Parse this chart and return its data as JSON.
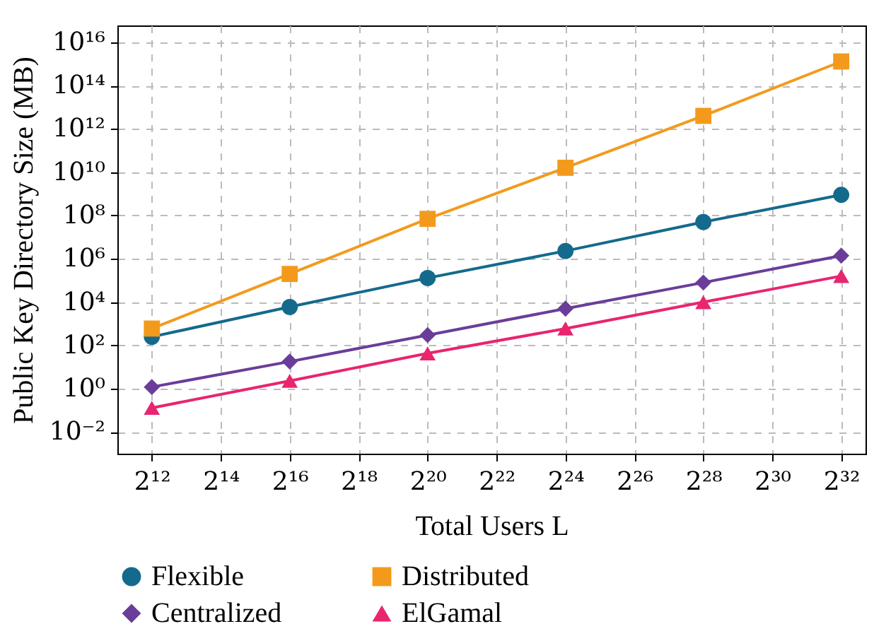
{
  "chart_data": {
    "type": "line",
    "xlabel": "Total Users L",
    "ylabel": "Public Key Directory Size (MB)",
    "log": "xy",
    "grid": true,
    "legend": "bottom",
    "x": [
      4096,
      65536,
      1048576,
      16777216,
      268435456,
      4294967296
    ],
    "xlim": [
      2048,
      7000000000
    ],
    "xticks": [
      {
        "value": 4096,
        "label": "2¹²"
      },
      {
        "value": 16384,
        "label": "2¹⁴"
      },
      {
        "value": 65536,
        "label": "2¹⁶"
      },
      {
        "value": 262144,
        "label": "2¹⁸"
      },
      {
        "value": 1048576,
        "label": "2²⁰"
      },
      {
        "value": 4194304,
        "label": "2²²"
      },
      {
        "value": 16777216,
        "label": "2²⁴"
      },
      {
        "value": 67108864,
        "label": "2²⁶"
      },
      {
        "value": 268435456,
        "label": "2²⁸"
      },
      {
        "value": 1073741824,
        "label": "2³⁰"
      },
      {
        "value": 4294967296,
        "label": "2³²"
      }
    ],
    "ylim": [
      0.001,
      60000000000000000
    ],
    "yticks": [
      {
        "value": 0.01,
        "label": "10⁻²"
      },
      {
        "value": 1,
        "label": "10⁰"
      },
      {
        "value": 100,
        "label": "10²"
      },
      {
        "value": 10000,
        "label": "10⁴"
      },
      {
        "value": 1000000,
        "label": "10⁶"
      },
      {
        "value": 100000000,
        "label": "10⁸"
      },
      {
        "value": 10000000000,
        "label": "10¹⁰"
      },
      {
        "value": 1000000000000,
        "label": "10¹²"
      },
      {
        "value": 100000000000000,
        "label": "10¹⁴"
      },
      {
        "value": 10000000000000000,
        "label": "10¹⁶"
      }
    ],
    "series": [
      {
        "name": "Flexible",
        "color": "#146a8c",
        "marker": "circle",
        "values": [
          250,
          6000,
          130000,
          2300000,
          50000000,
          900000000
        ]
      },
      {
        "name": "Distributed",
        "color": "#f39a1d",
        "marker": "square",
        "values": [
          600,
          200000,
          70000000,
          16000000000,
          4000000000000,
          1300000000000000
        ]
      },
      {
        "name": "Centralized",
        "color": "#6a3d9a",
        "marker": "diamond",
        "values": [
          1.2,
          18,
          300,
          5000,
          80000,
          1400000
        ]
      },
      {
        "name": "ElGamal",
        "color": "#e8256e",
        "marker": "triangle",
        "values": [
          0.13,
          2.3,
          43,
          600,
          10000,
          160000
        ]
      }
    ]
  }
}
